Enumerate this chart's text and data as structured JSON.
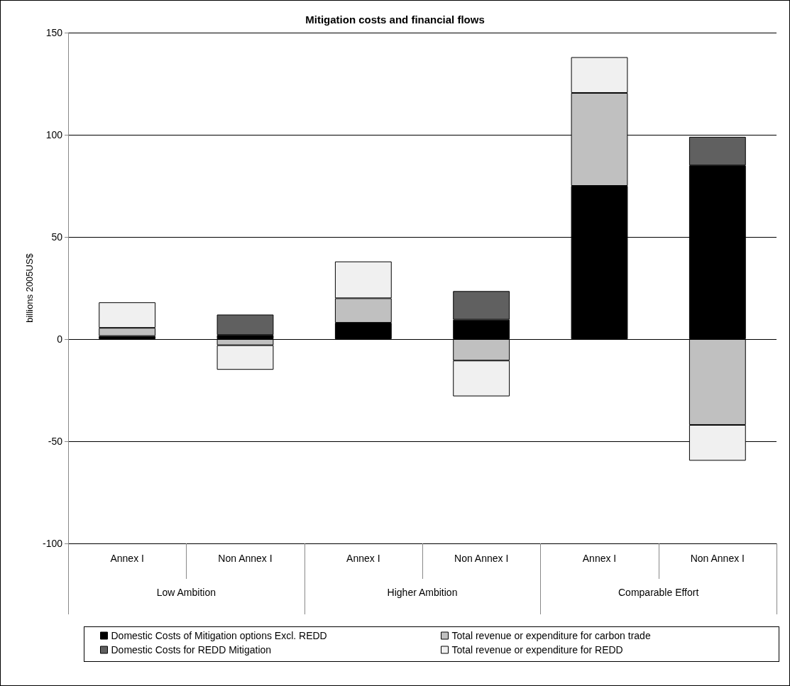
{
  "chart_data": {
    "type": "bar",
    "title": "Mitigation costs and financial flows",
    "ylabel": "billions 2005US$",
    "categories": [
      "Annex I",
      "Non Annex I",
      "Annex I",
      "Non Annex I",
      "Annex I",
      "Non Annex I"
    ],
    "annotations": [
      "Low Ambition",
      "Higher Ambition",
      "Comparable Effort"
    ],
    "stacked": true,
    "series": [
      {
        "name": "Domestic Costs of Mitigation options Excl. REDD",
        "color": "#000000",
        "values": [
          1.5,
          2,
          8,
          9.5,
          75,
          85
        ]
      },
      {
        "name": "Total revenue or expenditure for carbon trade",
        "color": "#c0c0c0",
        "values": [
          4,
          -3,
          12,
          -10.5,
          45.5,
          -42
        ]
      },
      {
        "name": "Domestic Costs for REDD Mitigation",
        "color": "#606060",
        "values": [
          null,
          10,
          null,
          14,
          null,
          14
        ]
      },
      {
        "name": "Total revenue or expenditure for REDD",
        "color": "#f0f0f0",
        "values": [
          12.5,
          -12,
          18,
          -17.5,
          17.5,
          -17.5
        ]
      }
    ],
    "ylim": [
      -100,
      150
    ],
    "yticks": [
      -100,
      -50,
      0,
      50,
      100,
      150
    ],
    "grid": "y",
    "legend": "bottom"
  }
}
